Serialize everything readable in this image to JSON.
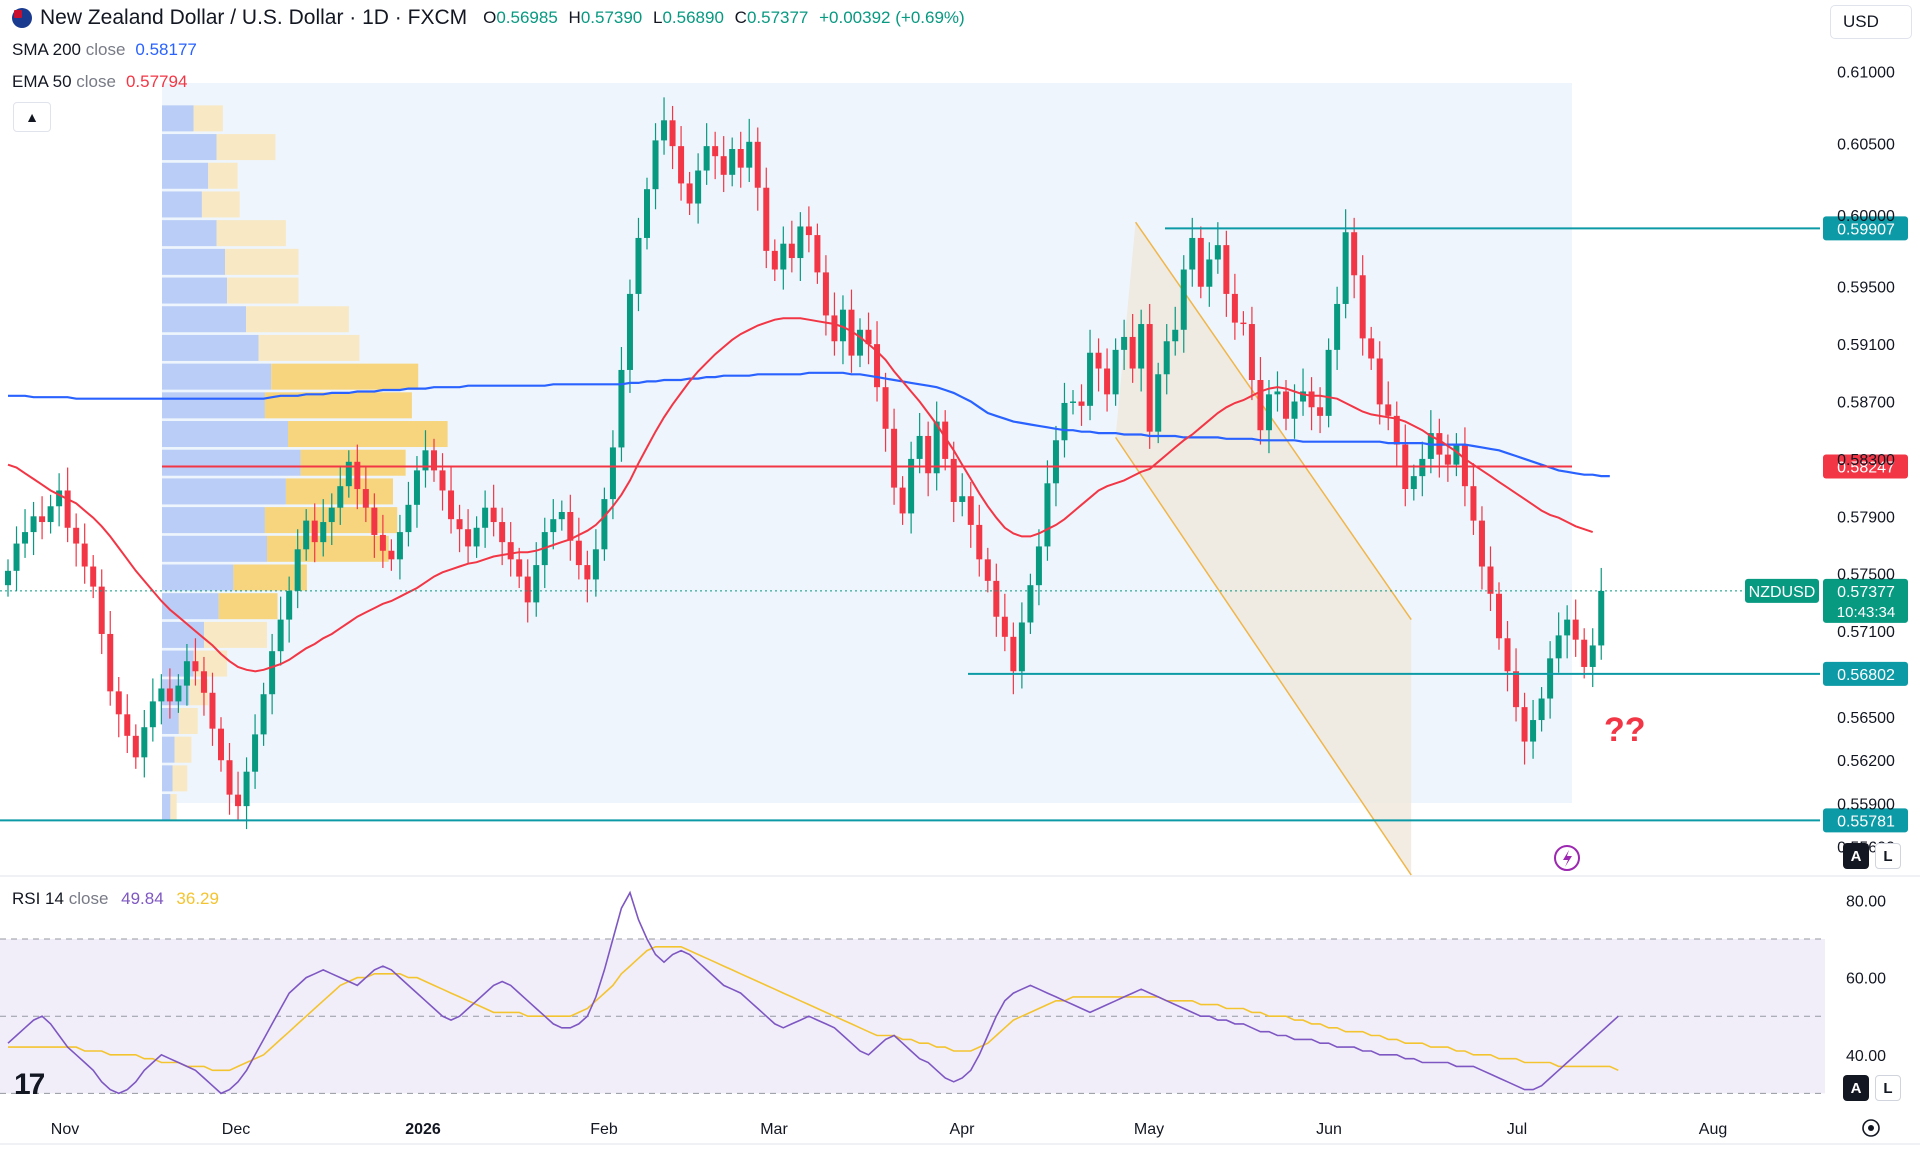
{
  "header": {
    "symbol": "New Zealand Dollar / U.S. Dollar · 1D · FXCM",
    "ohlc": {
      "o_label": "O",
      "o": "0.56985",
      "h_label": "H",
      "h": "0.57390",
      "l_label": "L",
      "l": "0.56890",
      "c_label": "C",
      "c": "0.57377",
      "change": "+0.00392 (+0.69%)"
    },
    "sma_label": "SMA 200",
    "sma_sub": "close",
    "sma_value": "0.58177",
    "ema_label": "EMA 50",
    "ema_sub": "close",
    "ema_value": "0.57794",
    "collapse_icon": "▲",
    "currency": "USD"
  },
  "rsi_header": {
    "label": "RSI 14",
    "sub": "close",
    "value": "49.84",
    "ma_value": "36.29"
  },
  "colors": {
    "up": "#089981",
    "down": "#f23645",
    "sma": "#2962ff",
    "ema": "#f23645",
    "level": "#0c9aa6",
    "rsi": "#7e57c2",
    "rsi_ma": "#f4c430"
  },
  "chart_data": {
    "type": "candlestick",
    "price_axis": {
      "ticks": [
        "0.61000",
        "0.60500",
        "0.60000",
        "0.59500",
        "0.59100",
        "0.58700",
        "0.58300",
        "0.57900",
        "0.57500",
        "0.57100",
        "0.56500",
        "0.56200",
        "0.55900",
        "0.55600"
      ],
      "range": [
        0.554,
        0.6115
      ]
    },
    "time_axis": [
      "Nov",
      "Dec",
      "2026",
      "Feb",
      "Mar",
      "Apr",
      "May",
      "Jun",
      "Jul",
      "Aug"
    ],
    "levels": [
      {
        "value": 0.59907,
        "label": "0.59907",
        "color": "#0c9aa6"
      },
      {
        "value": 0.58247,
        "label": "0.58247",
        "color": "#f23645"
      },
      {
        "value": 0.56802,
        "label": "0.56802",
        "color": "#0c9aa6"
      },
      {
        "value": 0.55781,
        "label": "0.55781",
        "color": "#0c9aa6"
      }
    ],
    "last_price": {
      "symbol": "NZDUSD",
      "value": "0.57377",
      "countdown": "10:43:34"
    },
    "annotation": "??",
    "closes": [
      0.5752,
      0.5771,
      0.5779,
      0.579,
      0.5786,
      0.5797,
      0.5808,
      0.5782,
      0.5771,
      0.5755,
      0.5741,
      0.5708,
      0.5668,
      0.5652,
      0.5637,
      0.5622,
      0.5643,
      0.5661,
      0.567,
      0.5661,
      0.5672,
      0.5689,
      0.5682,
      0.5667,
      0.5642,
      0.562,
      0.5596,
      0.5588,
      0.5612,
      0.5638,
      0.5666,
      0.5696,
      0.5718,
      0.5738,
      0.5767,
      0.5787,
      0.5772,
      0.5786,
      0.5796,
      0.5811,
      0.5828,
      0.5809,
      0.5796,
      0.5777,
      0.5766,
      0.576,
      0.5779,
      0.5798,
      0.5822,
      0.5836,
      0.5822,
      0.5808,
      0.5788,
      0.5781,
      0.5769,
      0.5782,
      0.5796,
      0.5786,
      0.5772,
      0.576,
      0.5748,
      0.573,
      0.5756,
      0.5779,
      0.5788,
      0.5793,
      0.5773,
      0.5756,
      0.5746,
      0.5767,
      0.5802,
      0.5838,
      0.5892,
      0.5945,
      0.5984,
      0.6018,
      0.6052,
      0.6066,
      0.6048,
      0.6022,
      0.6008,
      0.6031,
      0.6048,
      0.6041,
      0.6028,
      0.6046,
      0.6033,
      0.6051,
      0.6019,
      0.5975,
      0.5962,
      0.598,
      0.597,
      0.5992,
      0.5986,
      0.596,
      0.593,
      0.5912,
      0.5934,
      0.5902,
      0.592,
      0.591,
      0.588,
      0.5851,
      0.581,
      0.5792,
      0.583,
      0.5846,
      0.582,
      0.5856,
      0.583,
      0.58,
      0.5804,
      0.5784,
      0.576,
      0.5745,
      0.572,
      0.5706,
      0.5682,
      0.5716,
      0.5742,
      0.5769,
      0.5813,
      0.5843,
      0.5869,
      0.587,
      0.5867,
      0.5904,
      0.5893,
      0.5875,
      0.5906,
      0.5915,
      0.5893,
      0.5924,
      0.5849,
      0.5889,
      0.5912,
      0.592,
      0.5962,
      0.5984,
      0.595,
      0.5969,
      0.5979,
      0.5945,
      0.5925,
      0.5924,
      0.5885,
      0.585,
      0.5875,
      0.5877,
      0.5858,
      0.587,
      0.5877,
      0.5866,
      0.586,
      0.5906,
      0.5938,
      0.5988,
      0.5958,
      0.5914,
      0.59,
      0.5868,
      0.586,
      0.584,
      0.5809,
      0.5818,
      0.583,
      0.5848,
      0.5833,
      0.5826,
      0.584,
      0.5811,
      0.5787,
      0.5755,
      0.5736,
      0.5705,
      0.5682,
      0.5657,
      0.5633,
      0.5648,
      0.5663,
      0.5691,
      0.5707,
      0.5718,
      0.5704,
      0.5685,
      0.57,
      0.5738
    ],
    "sma200": [
      0.5874,
      0.5874,
      0.5874,
      0.5873,
      0.5873,
      0.5873,
      0.5873,
      0.5873,
      0.5872,
      0.5872,
      0.5872,
      0.5872,
      0.5872,
      0.5872,
      0.5872,
      0.5872,
      0.5872,
      0.5872,
      0.5872,
      0.5872,
      0.5872,
      0.5872,
      0.5872,
      0.5872,
      0.5872,
      0.5872,
      0.5872,
      0.5872,
      0.5872,
      0.5872,
      0.5872,
      0.5873,
      0.5874,
      0.5874,
      0.5874,
      0.5875,
      0.5875,
      0.5875,
      0.5876,
      0.5876,
      0.5876,
      0.5877,
      0.5877,
      0.5877,
      0.5878,
      0.5878,
      0.5878,
      0.5879,
      0.5879,
      0.5879,
      0.588,
      0.588,
      0.588,
      0.588,
      0.5881,
      0.5881,
      0.5881,
      0.5881,
      0.5881,
      0.5881,
      0.5881,
      0.5881,
      0.5881,
      0.5881,
      0.5882,
      0.5882,
      0.5882,
      0.5882,
      0.5882,
      0.5882,
      0.5882,
      0.5882,
      0.5882,
      0.5883,
      0.5883,
      0.5884,
      0.5884,
      0.5885,
      0.5885,
      0.5885,
      0.5886,
      0.5886,
      0.5887,
      0.5887,
      0.5888,
      0.5888,
      0.5888,
      0.5888,
      0.5889,
      0.5889,
      0.5889,
      0.5889,
      0.5889,
      0.5889,
      0.589,
      0.589,
      0.589,
      0.589,
      0.589,
      0.5889,
      0.5889,
      0.5888,
      0.5887,
      0.5886,
      0.5885,
      0.5884,
      0.5883,
      0.5882,
      0.5881,
      0.588,
      0.5878,
      0.5876,
      0.5873,
      0.587,
      0.5866,
      0.5862,
      0.586,
      0.5858,
      0.5856,
      0.5855,
      0.5854,
      0.5853,
      0.5852,
      0.5851,
      0.585,
      0.585,
      0.5849,
      0.5849,
      0.5848,
      0.5848,
      0.5848,
      0.5847,
      0.5847,
      0.5847,
      0.5846,
      0.5846,
      0.5846,
      0.5846,
      0.5845,
      0.5845,
      0.5845,
      0.5845,
      0.5845,
      0.5844,
      0.5844,
      0.5844,
      0.5844,
      0.5843,
      0.5843,
      0.5843,
      0.5843,
      0.5843,
      0.5842,
      0.5842,
      0.5842,
      0.5842,
      0.5842,
      0.5842,
      0.5842,
      0.5842,
      0.5842,
      0.5842,
      0.5841,
      0.5841,
      0.5841,
      0.5841,
      0.5841,
      0.584,
      0.584,
      0.584,
      0.584,
      0.584,
      0.5839,
      0.5838,
      0.5837,
      0.5836,
      0.5834,
      0.5832,
      0.583,
      0.5828,
      0.5826,
      0.5824,
      0.5822,
      0.5821,
      0.582,
      0.5819,
      0.5819,
      0.5818,
      0.5818
    ],
    "ema50": [
      0.5826,
      0.5824,
      0.582,
      0.5816,
      0.5812,
      0.5808,
      0.5805,
      0.5802,
      0.5799,
      0.5794,
      0.5789,
      0.5783,
      0.5776,
      0.5768,
      0.576,
      0.5752,
      0.5745,
      0.5738,
      0.5731,
      0.5725,
      0.572,
      0.5715,
      0.571,
      0.5705,
      0.57,
      0.5694,
      0.5689,
      0.5685,
      0.5683,
      0.5682,
      0.5683,
      0.5685,
      0.5687,
      0.569,
      0.5694,
      0.5698,
      0.5701,
      0.5705,
      0.5708,
      0.5712,
      0.5716,
      0.572,
      0.5723,
      0.5726,
      0.5729,
      0.5731,
      0.5734,
      0.5737,
      0.574,
      0.5744,
      0.5748,
      0.5751,
      0.5753,
      0.5755,
      0.5757,
      0.5758,
      0.576,
      0.5762,
      0.5763,
      0.5764,
      0.5765,
      0.5765,
      0.5766,
      0.5768,
      0.577,
      0.5772,
      0.5774,
      0.5777,
      0.578,
      0.5784,
      0.579,
      0.5797,
      0.5805,
      0.5815,
      0.5827,
      0.5838,
      0.5849,
      0.5859,
      0.5868,
      0.5876,
      0.5884,
      0.5891,
      0.5897,
      0.5903,
      0.5908,
      0.5913,
      0.5917,
      0.592,
      0.5923,
      0.5925,
      0.5927,
      0.5928,
      0.5928,
      0.5928,
      0.5927,
      0.5926,
      0.5925,
      0.5924,
      0.5922,
      0.5919,
      0.5915,
      0.591,
      0.5905,
      0.5899,
      0.5891,
      0.5884,
      0.5877,
      0.587,
      0.5862,
      0.5854,
      0.5845,
      0.5836,
      0.5826,
      0.5816,
      0.5806,
      0.5797,
      0.5789,
      0.5782,
      0.5778,
      0.5776,
      0.5776,
      0.5778,
      0.5781,
      0.5784,
      0.5788,
      0.5793,
      0.5798,
      0.5803,
      0.5808,
      0.5811,
      0.5813,
      0.5815,
      0.5818,
      0.5821,
      0.5823,
      0.5828,
      0.5833,
      0.5838,
      0.5843,
      0.5847,
      0.5852,
      0.5857,
      0.5862,
      0.5866,
      0.5869,
      0.5871,
      0.5874,
      0.5877,
      0.5879,
      0.588,
      0.5879,
      0.5877,
      0.5875,
      0.5874,
      0.5874,
      0.5873,
      0.5872,
      0.5869,
      0.5866,
      0.5863,
      0.5861,
      0.586,
      0.5859,
      0.5858,
      0.5856,
      0.5853,
      0.585,
      0.5846,
      0.5843,
      0.5839,
      0.5835,
      0.583,
      0.5826,
      0.5822,
      0.5818,
      0.5814,
      0.581,
      0.5806,
      0.5802,
      0.5798,
      0.5794,
      0.5791,
      0.5789,
      0.5786,
      0.5783,
      0.5781,
      0.5779
    ],
    "volume_profile": [
      {
        "price": 0.6067,
        "buy": 30,
        "sell": 28
      },
      {
        "price": 0.6047,
        "buy": 52,
        "sell": 56
      },
      {
        "price": 0.6027,
        "buy": 44,
        "sell": 28
      },
      {
        "price": 0.6007,
        "buy": 38,
        "sell": 36
      },
      {
        "price": 0.5987,
        "buy": 52,
        "sell": 66
      },
      {
        "price": 0.5967,
        "buy": 60,
        "sell": 70
      },
      {
        "price": 0.5947,
        "buy": 62,
        "sell": 68
      },
      {
        "price": 0.5927,
        "buy": 80,
        "sell": 98
      },
      {
        "price": 0.5907,
        "buy": 92,
        "sell": 96
      },
      {
        "price": 0.5887,
        "buy": 104,
        "sell": 140
      },
      {
        "price": 0.5867,
        "buy": 98,
        "sell": 140
      },
      {
        "price": 0.5847,
        "buy": 120,
        "sell": 152
      },
      {
        "price": 0.5827,
        "buy": 132,
        "sell": 100
      },
      {
        "price": 0.5807,
        "buy": 118,
        "sell": 102
      },
      {
        "price": 0.5787,
        "buy": 98,
        "sell": 126
      },
      {
        "price": 0.5767,
        "buy": 100,
        "sell": 116
      },
      {
        "price": 0.5747,
        "buy": 68,
        "sell": 70
      },
      {
        "price": 0.5727,
        "buy": 54,
        "sell": 56
      },
      {
        "price": 0.5707,
        "buy": 40,
        "sell": 60
      },
      {
        "price": 0.5687,
        "buy": 30,
        "sell": 32
      },
      {
        "price": 0.5667,
        "buy": 26,
        "sell": 18
      },
      {
        "price": 0.5647,
        "buy": 16,
        "sell": 18
      },
      {
        "price": 0.5627,
        "buy": 12,
        "sell": 16
      },
      {
        "price": 0.5607,
        "buy": 10,
        "sell": 14
      },
      {
        "price": 0.5587,
        "buy": 8,
        "sell": 6
      }
    ],
    "rsi": {
      "ticks": [
        "80.00",
        "60.00",
        "40.00"
      ],
      "range": [
        27,
        84
      ],
      "bands": [
        70,
        50,
        30
      ],
      "values": [
        43,
        45,
        47,
        49,
        50,
        48,
        45,
        42,
        40,
        38,
        36,
        33,
        31,
        30,
        31,
        33,
        36,
        38,
        40,
        39,
        38,
        37,
        36,
        34,
        32,
        30,
        31,
        33,
        36,
        40,
        44,
        48,
        52,
        56,
        58,
        60,
        61,
        62,
        61,
        60,
        59,
        58,
        60,
        62,
        63,
        62,
        60,
        58,
        56,
        54,
        52,
        50,
        49,
        50,
        52,
        54,
        56,
        58,
        59,
        58,
        56,
        54,
        52,
        50,
        48,
        47,
        47,
        48,
        50,
        55,
        62,
        70,
        78,
        82,
        75,
        70,
        66,
        64,
        66,
        67,
        66,
        64,
        62,
        60,
        58,
        57,
        56,
        54,
        52,
        50,
        48,
        47,
        48,
        49,
        50,
        49,
        48,
        47,
        45,
        43,
        41,
        40,
        42,
        44,
        45,
        43,
        41,
        39,
        38,
        36,
        34,
        33,
        34,
        36,
        40,
        45,
        50,
        54,
        56,
        57,
        58,
        57,
        56,
        55,
        54,
        53,
        52,
        51,
        52,
        53,
        54,
        55,
        56,
        57,
        56,
        55,
        54,
        53,
        52,
        51,
        50,
        50,
        49,
        49,
        48,
        48,
        47,
        46,
        46,
        45,
        45,
        44,
        44,
        44,
        43,
        43,
        42,
        42,
        42,
        41,
        41,
        40,
        40,
        40,
        39,
        39,
        38,
        38,
        38,
        38,
        37,
        37,
        37,
        36,
        35,
        34,
        33,
        32,
        31,
        31,
        32,
        34,
        36,
        38,
        40,
        42,
        44,
        46,
        48,
        50
      ],
      "ma": [
        42,
        42,
        42,
        42,
        42,
        42,
        42,
        42,
        42,
        41,
        41,
        41,
        40,
        40,
        40,
        40,
        39,
        39,
        38,
        38,
        38,
        37,
        37,
        37,
        36,
        36,
        36,
        37,
        38,
        39,
        40,
        42,
        44,
        46,
        48,
        50,
        52,
        54,
        56,
        58,
        59,
        60,
        60,
        61,
        61,
        61,
        61,
        60,
        60,
        59,
        58,
        57,
        56,
        55,
        54,
        53,
        52,
        51,
        51,
        51,
        51,
        50,
        50,
        50,
        50,
        50,
        50,
        51,
        52,
        54,
        56,
        58,
        61,
        63,
        65,
        67,
        68,
        68,
        68,
        68,
        67,
        66,
        65,
        64,
        63,
        62,
        61,
        60,
        59,
        58,
        57,
        56,
        55,
        54,
        53,
        52,
        51,
        50,
        49,
        48,
        47,
        46,
        45,
        45,
        45,
        44,
        44,
        43,
        43,
        42,
        42,
        41,
        41,
        41,
        42,
        43,
        45,
        47,
        49,
        50,
        51,
        52,
        53,
        54,
        54,
        55,
        55,
        55,
        55,
        55,
        55,
        55,
        55,
        55,
        55,
        55,
        54,
        54,
        54,
        54,
        53,
        53,
        53,
        52,
        52,
        52,
        51,
        51,
        50,
        50,
        50,
        49,
        49,
        48,
        48,
        47,
        47,
        46,
        46,
        46,
        45,
        45,
        44,
        44,
        43,
        43,
        43,
        42,
        42,
        42,
        41,
        41,
        40,
        40,
        40,
        39,
        39,
        39,
        38,
        38,
        38,
        38,
        37,
        37,
        37,
        37,
        37,
        37,
        37,
        36
      ]
    }
  }
}
